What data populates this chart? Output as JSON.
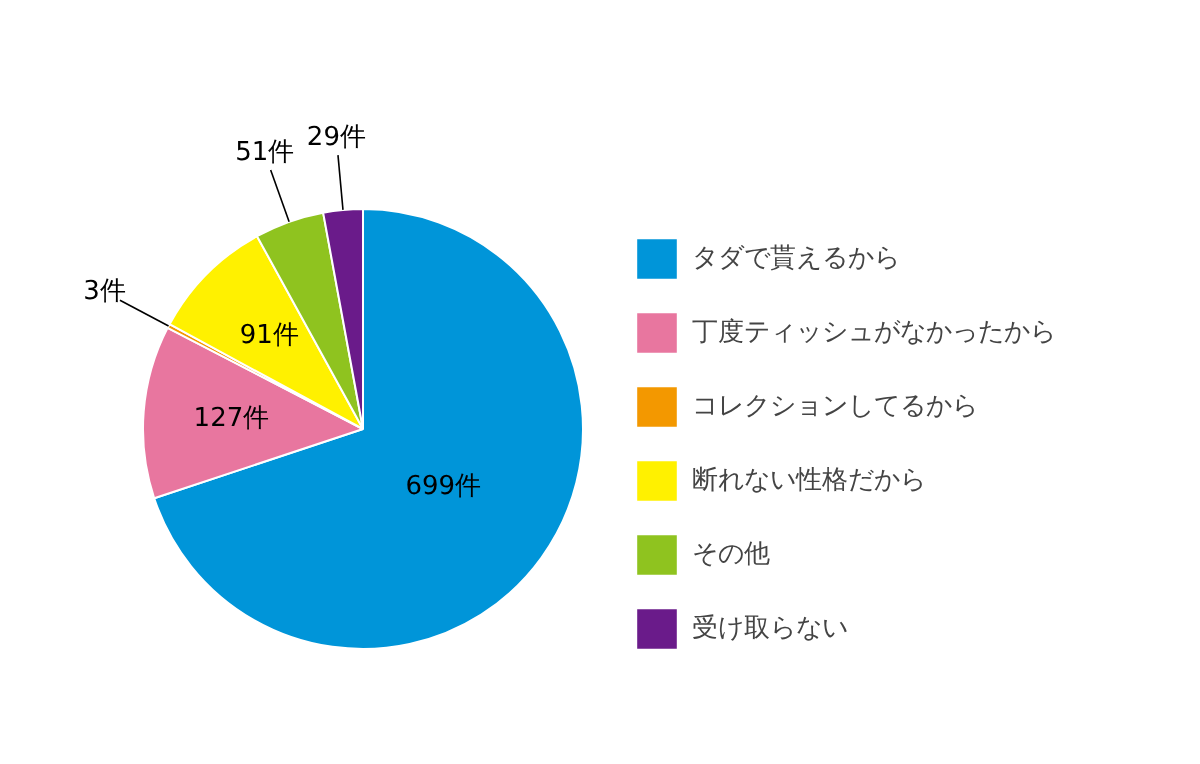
{
  "chart_data": {
    "type": "pie",
    "categories": [
      "タダで貰えるから",
      "丁度ティッシュがなかったから",
      "コレクションしてるから",
      "断れない性格だから",
      "その他",
      "受け取らない"
    ],
    "values": [
      699,
      127,
      3,
      91,
      51,
      29
    ],
    "colors": [
      "#0095d9",
      "#e8769f",
      "#f39800",
      "#fff100",
      "#8fc31f",
      "#6a1b8a"
    ],
    "value_labels": [
      "699件",
      "127件",
      "3件",
      "91件",
      "51件",
      "29件"
    ],
    "legend": "right"
  }
}
